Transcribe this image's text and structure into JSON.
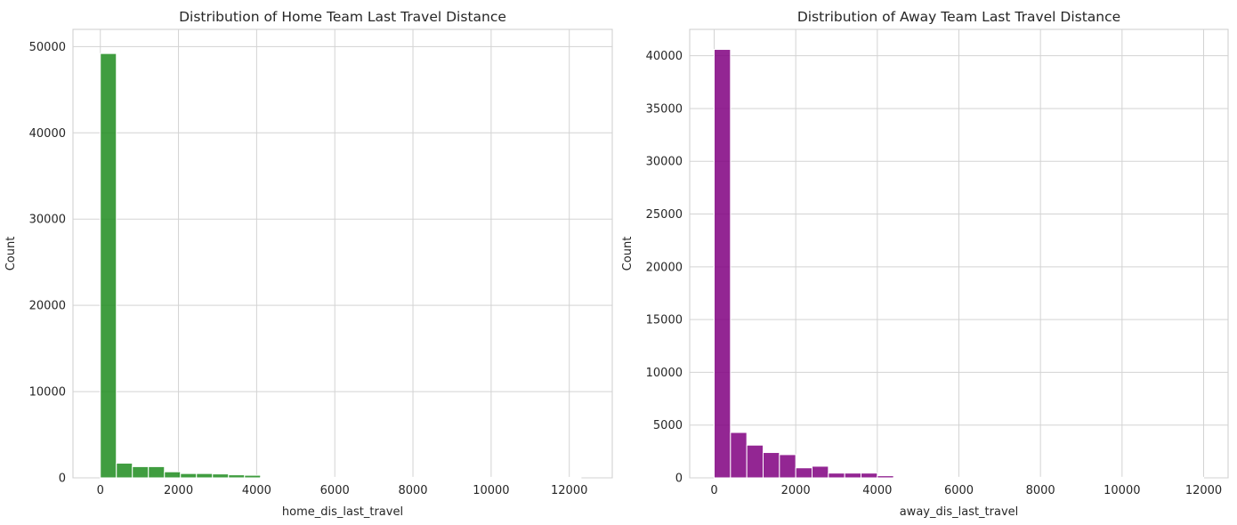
{
  "chart_data": [
    {
      "type": "bar",
      "title": "Distribution of Home Team Last Travel Distance",
      "xlabel": "home_dis_last_travel",
      "ylabel": "Count",
      "xlim": [
        -700,
        13100
      ],
      "ylim": [
        0,
        52000
      ],
      "x_ticks": [
        0,
        2000,
        4000,
        6000,
        8000,
        10000,
        12000
      ],
      "y_ticks": [
        0,
        10000,
        20000,
        30000,
        40000,
        50000
      ],
      "grid": true,
      "color": "#1e8c1e",
      "bin_width": 410,
      "bins": [
        {
          "start": 0,
          "count": 49200
        },
        {
          "start": 410,
          "count": 1700
        },
        {
          "start": 820,
          "count": 1300
        },
        {
          "start": 1230,
          "count": 1300
        },
        {
          "start": 1640,
          "count": 700
        },
        {
          "start": 2050,
          "count": 500
        },
        {
          "start": 2460,
          "count": 500
        },
        {
          "start": 2870,
          "count": 450
        },
        {
          "start": 3280,
          "count": 350
        },
        {
          "start": 3690,
          "count": 300
        },
        {
          "start": 4100,
          "count": 10
        },
        {
          "start": 4510,
          "count": 5
        },
        {
          "start": 4920,
          "count": 5
        },
        {
          "start": 5330,
          "count": 5
        },
        {
          "start": 5740,
          "count": 5
        },
        {
          "start": 6150,
          "count": 5
        },
        {
          "start": 6560,
          "count": 5
        },
        {
          "start": 6970,
          "count": 5
        },
        {
          "start": 7380,
          "count": 5
        },
        {
          "start": 7790,
          "count": 5
        },
        {
          "start": 8200,
          "count": 5
        },
        {
          "start": 8610,
          "count": 5
        },
        {
          "start": 9020,
          "count": 5
        },
        {
          "start": 9430,
          "count": 5
        },
        {
          "start": 9840,
          "count": 5
        },
        {
          "start": 10250,
          "count": 5
        },
        {
          "start": 10660,
          "count": 5
        },
        {
          "start": 11070,
          "count": 5
        },
        {
          "start": 11480,
          "count": 5
        },
        {
          "start": 11890,
          "count": 5
        }
      ]
    },
    {
      "type": "bar",
      "title": "Distribution of Away Team Last Travel Distance",
      "xlabel": "away_dis_last_travel",
      "ylabel": "Count",
      "xlim": [
        -600,
        12600
      ],
      "ylim": [
        0,
        42500
      ],
      "x_ticks": [
        0,
        2000,
        4000,
        6000,
        8000,
        10000,
        12000
      ],
      "y_ticks": [
        0,
        5000,
        10000,
        15000,
        20000,
        25000,
        30000,
        35000,
        40000
      ],
      "grid": true,
      "color": "#800080",
      "bin_width": 400,
      "bins": [
        {
          "start": 0,
          "count": 40600
        },
        {
          "start": 400,
          "count": 4300
        },
        {
          "start": 800,
          "count": 3100
        },
        {
          "start": 1200,
          "count": 2400
        },
        {
          "start": 1600,
          "count": 2200
        },
        {
          "start": 2000,
          "count": 950
        },
        {
          "start": 2400,
          "count": 1100
        },
        {
          "start": 2800,
          "count": 450
        },
        {
          "start": 3200,
          "count": 450
        },
        {
          "start": 3600,
          "count": 450
        },
        {
          "start": 4000,
          "count": 200
        },
        {
          "start": 4400,
          "count": 5
        },
        {
          "start": 4800,
          "count": 5
        },
        {
          "start": 5200,
          "count": 5
        },
        {
          "start": 5600,
          "count": 5
        },
        {
          "start": 6000,
          "count": 5
        },
        {
          "start": 6400,
          "count": 5
        },
        {
          "start": 6800,
          "count": 5
        },
        {
          "start": 7200,
          "count": 5
        },
        {
          "start": 7600,
          "count": 5
        },
        {
          "start": 8000,
          "count": 5
        },
        {
          "start": 8400,
          "count": 5
        },
        {
          "start": 8800,
          "count": 5
        },
        {
          "start": 9200,
          "count": 5
        },
        {
          "start": 9600,
          "count": 5
        },
        {
          "start": 10000,
          "count": 5
        },
        {
          "start": 10400,
          "count": 5
        },
        {
          "start": 10800,
          "count": 5
        },
        {
          "start": 11200,
          "count": 5
        },
        {
          "start": 11600,
          "count": 5
        }
      ]
    }
  ]
}
